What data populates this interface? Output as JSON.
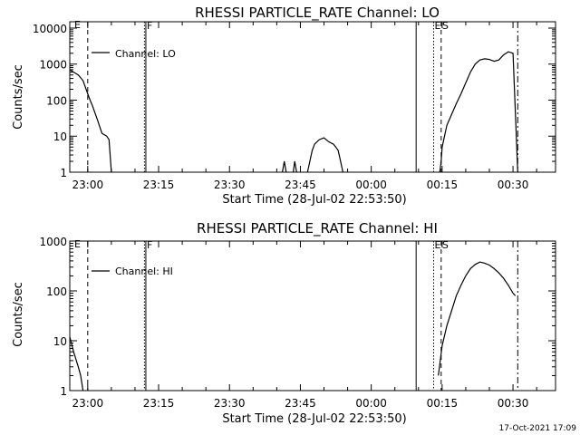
{
  "footer": {
    "timestamp": "17-Oct-2021 17:09"
  },
  "colors": {
    "background": "#ffffff",
    "foreground": "#000000"
  },
  "chart_data": [
    {
      "type": "line",
      "title": "RHESSI PARTICLE_RATE Channel: LO",
      "xlabel": "Start Time (28-Jul-02 22:53:50)",
      "ylabel": "Counts/sec",
      "yscale": "log",
      "xlim_minutes": [
        -3.8,
        99.0
      ],
      "ylim": [
        1,
        15000
      ],
      "x_ticks": [
        {
          "label": "23:00",
          "value": 0
        },
        {
          "label": "23:15",
          "value": 15
        },
        {
          "label": "23:30",
          "value": 30
        },
        {
          "label": "23:45",
          "value": 45
        },
        {
          "label": "00:00",
          "value": 60
        },
        {
          "label": "00:15",
          "value": 75
        },
        {
          "label": "00:30",
          "value": 90
        }
      ],
      "y_ticks": [
        {
          "label": "1",
          "value": 1
        },
        {
          "label": "10",
          "value": 10
        },
        {
          "label": "100",
          "value": 100
        },
        {
          "label": "1000",
          "value": 1000
        },
        {
          "label": "10000",
          "value": 10000
        }
      ],
      "legend": {
        "label": "Channel: LO",
        "position": "top-left"
      },
      "vlines": [
        {
          "minute": 0.0,
          "style": "dashed",
          "label": ""
        },
        {
          "minute": 12.0,
          "style": "dotted",
          "label": ""
        },
        {
          "minute": 12.3,
          "style": "solid",
          "label": "F"
        },
        {
          "minute": 69.5,
          "style": "solid",
          "label": ""
        },
        {
          "minute": 73.2,
          "style": "dotted",
          "label": "E"
        },
        {
          "minute": 74.8,
          "style": "dashed",
          "label": "S"
        },
        {
          "minute": 91.0,
          "style": "dashdot",
          "label": ""
        }
      ],
      "corner_label": "E",
      "series": [
        {
          "segments": [
            [
              [
                -3.8,
                700
              ],
              [
                -3,
                600
              ],
              [
                -2,
                500
              ],
              [
                -1,
                350
              ],
              [
                0,
                150
              ],
              [
                0.5,
                100
              ],
              [
                1,
                70
              ],
              [
                2,
                30
              ],
              [
                3,
                12
              ],
              [
                4,
                10
              ],
              [
                4.5,
                8
              ],
              [
                5,
                1
              ]
            ],
            [
              [
                41.2,
                1
              ],
              [
                41.6,
                2
              ],
              [
                42,
                1
              ]
            ],
            [
              [
                43.5,
                1
              ],
              [
                43.8,
                2
              ],
              [
                44.2,
                1
              ]
            ],
            [
              [
                46.5,
                1
              ],
              [
                47,
                2
              ],
              [
                47.5,
                4
              ],
              [
                48,
                6
              ],
              [
                49,
                8
              ],
              [
                50,
                9
              ],
              [
                51,
                7
              ],
              [
                52,
                6
              ],
              [
                52.5,
                5
              ],
              [
                53,
                4
              ],
              [
                53.5,
                2
              ],
              [
                54,
                1
              ]
            ],
            [
              [
                74.5,
                1
              ],
              [
                74.8,
                2
              ],
              [
                75,
                5
              ],
              [
                75.5,
                10
              ],
              [
                76,
                20
              ],
              [
                77,
                40
              ],
              [
                78,
                80
              ],
              [
                79,
                150
              ],
              [
                80,
                300
              ],
              [
                81,
                600
              ],
              [
                82,
                1000
              ],
              [
                83,
                1300
              ],
              [
                84,
                1400
              ],
              [
                85,
                1350
              ],
              [
                86,
                1200
              ],
              [
                87,
                1300
              ],
              [
                88,
                1800
              ],
              [
                89,
                2200
              ],
              [
                90,
                2000
              ],
              [
                91,
                1
              ]
            ]
          ]
        }
      ]
    },
    {
      "type": "line",
      "title": "RHESSI PARTICLE_RATE Channel: HI",
      "xlabel": "Start Time (28-Jul-02 22:53:50)",
      "ylabel": "Counts/sec",
      "yscale": "log",
      "xlim_minutes": [
        -3.8,
        99.0
      ],
      "ylim": [
        1,
        1000
      ],
      "x_ticks": [
        {
          "label": "23:00",
          "value": 0
        },
        {
          "label": "23:15",
          "value": 15
        },
        {
          "label": "23:30",
          "value": 30
        },
        {
          "label": "23:45",
          "value": 45
        },
        {
          "label": "00:00",
          "value": 60
        },
        {
          "label": "00:15",
          "value": 75
        },
        {
          "label": "00:30",
          "value": 90
        }
      ],
      "y_ticks": [
        {
          "label": "1",
          "value": 1
        },
        {
          "label": "10",
          "value": 10
        },
        {
          "label": "100",
          "value": 100
        },
        {
          "label": "1000",
          "value": 1000
        }
      ],
      "legend": {
        "label": "Channel: HI",
        "position": "top-left"
      },
      "vlines": [
        {
          "minute": 0.0,
          "style": "dashed",
          "label": ""
        },
        {
          "minute": 12.0,
          "style": "dotted",
          "label": ""
        },
        {
          "minute": 12.3,
          "style": "solid",
          "label": "F"
        },
        {
          "minute": 69.5,
          "style": "solid",
          "label": ""
        },
        {
          "minute": 73.2,
          "style": "dotted",
          "label": "E"
        },
        {
          "minute": 74.8,
          "style": "dashed",
          "label": "S"
        },
        {
          "minute": 91.0,
          "style": "dashdot",
          "label": ""
        }
      ],
      "corner_label": "E",
      "series": [
        {
          "segments": [
            [
              [
                -3.8,
                12
              ],
              [
                -3,
                6
              ],
              [
                -2,
                3
              ],
              [
                -1.5,
                2
              ],
              [
                -1,
                1
              ]
            ],
            [
              [
                74.2,
                2
              ],
              [
                74.6,
                4
              ],
              [
                75,
                8
              ],
              [
                76,
                20
              ],
              [
                77,
                40
              ],
              [
                78,
                80
              ],
              [
                79,
                130
              ],
              [
                80,
                200
              ],
              [
                81,
                280
              ],
              [
                82,
                340
              ],
              [
                83,
                380
              ],
              [
                84,
                360
              ],
              [
                85,
                330
              ],
              [
                86,
                280
              ],
              [
                87,
                230
              ],
              [
                88,
                180
              ],
              [
                89,
                130
              ],
              [
                90,
                90
              ],
              [
                90.5,
                80
              ]
            ]
          ]
        }
      ]
    }
  ]
}
